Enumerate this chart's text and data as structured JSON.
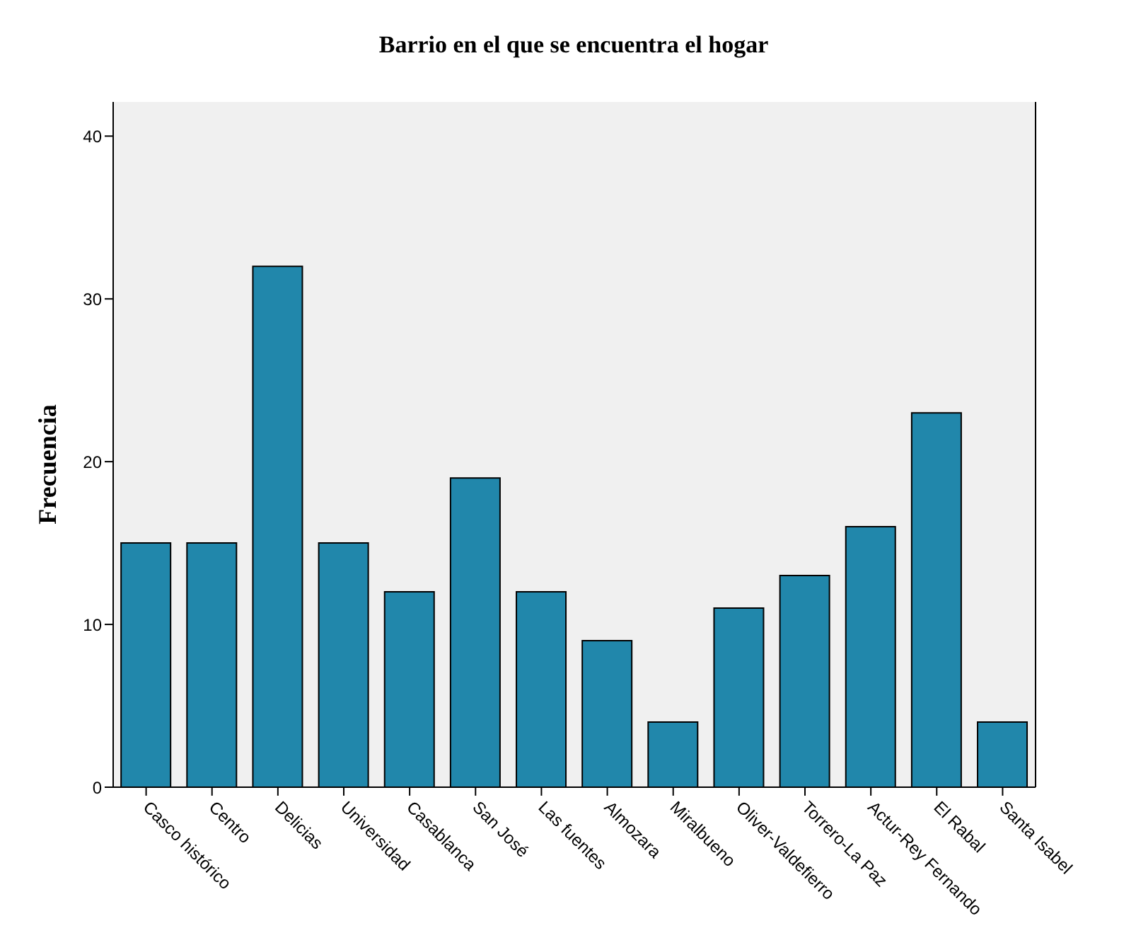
{
  "chart_data": {
    "type": "bar",
    "title": "Barrio en el que se encuentra el hogar",
    "ylabel": "Frecuencia",
    "categories": [
      "Casco histórico",
      "Centro",
      "Delicias",
      "Universidad",
      "Casablanca",
      "San José",
      "Las fuentes",
      "Almozara",
      "Miralbueno",
      "Oliver-Valdefierro",
      "Torrero-La Paz",
      "Actur-Rey Fernando",
      "El Rabal",
      "Santa Isabel"
    ],
    "values": [
      15,
      15,
      32,
      15,
      12,
      19,
      12,
      9,
      4,
      11,
      13,
      16,
      23,
      4
    ],
    "color": "#2187ab",
    "ylim": [
      0,
      42.1
    ],
    "yticks": [
      0,
      10,
      20,
      30,
      40
    ],
    "grid": false
  }
}
